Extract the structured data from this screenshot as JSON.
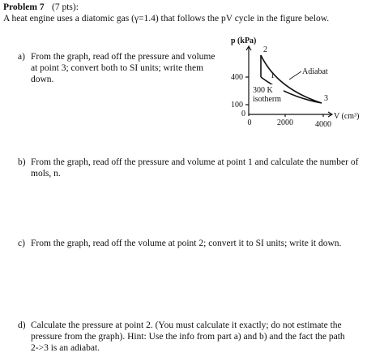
{
  "header": {
    "title": "Problem 7",
    "points": "(7 pts):"
  },
  "intro": "A heat engine uses a diatomic gas (γ=1.4) that follows the pV cycle in the figure below.",
  "figure": {
    "y_label": "p (kPa)",
    "x_label": "V (cm³)",
    "y_ticks": [
      "400",
      "100",
      "0"
    ],
    "x_ticks": [
      "0",
      "2000",
      "4000"
    ],
    "points": [
      "1",
      "2",
      "3"
    ],
    "adiabat": "Adiabat",
    "isotherm": [
      "300 K",
      "isotherm"
    ]
  },
  "parts": [
    {
      "label": "a)",
      "lines": [
        "From the graph, read off the pressure and volume",
        "at point 3; convert both to SI units; write them",
        "down."
      ]
    },
    {
      "label": "b)",
      "lines": [
        "From the graph, read off the pressure and volume at point 1 and calculate the number of",
        "mols, n."
      ]
    },
    {
      "label": "c)",
      "lines": [
        "From the graph, read off the volume at point 2; convert it to SI units; write it down."
      ]
    },
    {
      "label": "d)",
      "lines": [
        "Calculate the pressure at point 2.  (You must calculate it exactly; do not estimate the",
        "pressure from the graph).  Hint: Use the info from part a) and b) and the fact the path",
        "2->3 is an adiabat."
      ]
    }
  ]
}
